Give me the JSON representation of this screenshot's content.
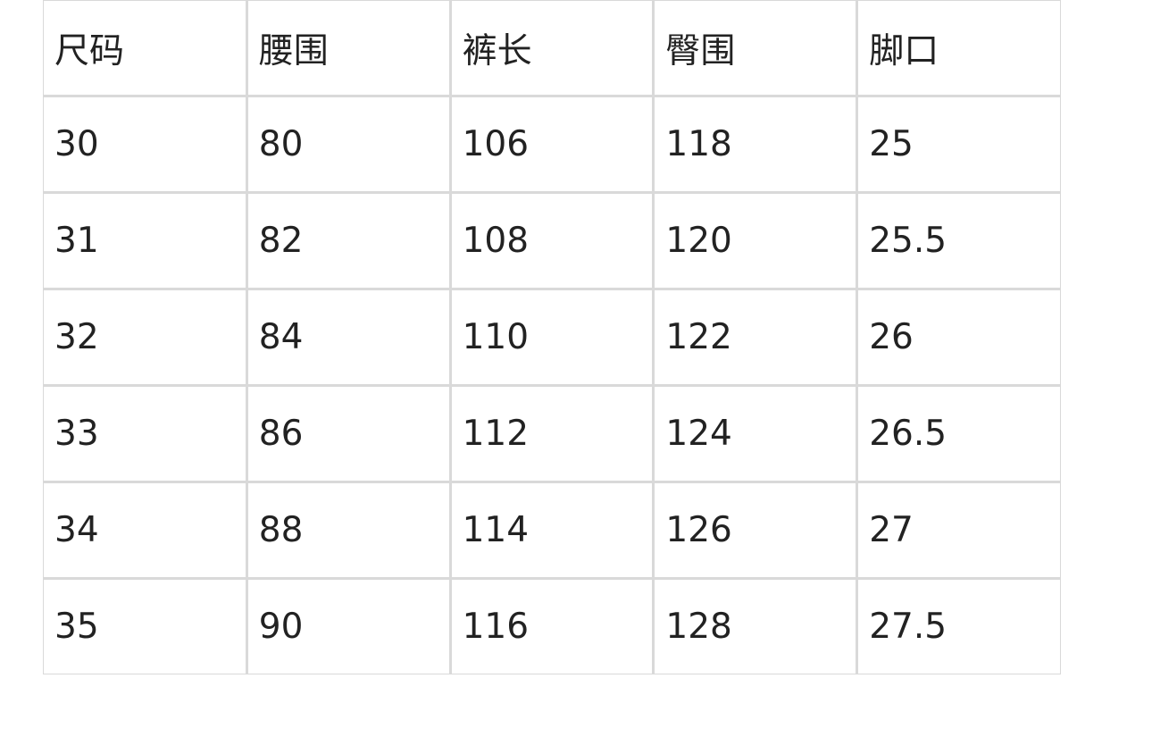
{
  "table": {
    "headers": [
      "尺码",
      "腰围",
      "裤长",
      "臀围",
      "脚口"
    ],
    "rows": [
      [
        "30",
        "80",
        "106",
        "118",
        "25"
      ],
      [
        "31",
        "82",
        "108",
        "120",
        "25.5"
      ],
      [
        "32",
        "84",
        "110",
        "122",
        "26"
      ],
      [
        "33",
        "86",
        "112",
        "124",
        "26.5"
      ],
      [
        "34",
        "88",
        "114",
        "126",
        "27"
      ],
      [
        "35",
        "90",
        "116",
        "128",
        "27.5"
      ]
    ]
  }
}
